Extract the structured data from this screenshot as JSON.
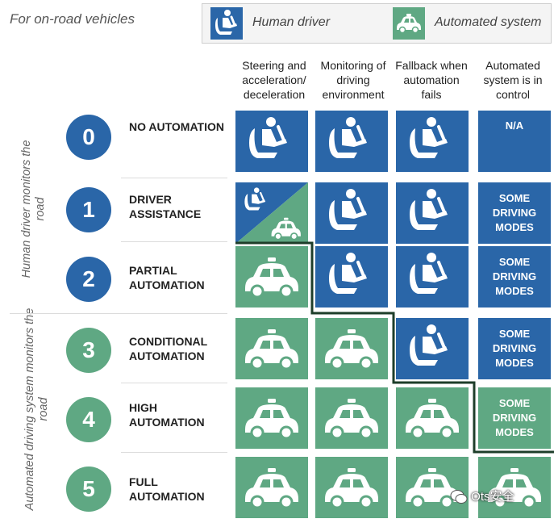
{
  "header": {
    "title": "For on-road vehicles"
  },
  "legend": {
    "human": "Human driver",
    "automated": "Automated system",
    "human_icon": "human-driver-icon",
    "automated_icon": "self-driving-car-icon"
  },
  "columns": [
    "Steering and acceleration/ deceleration",
    "Monitoring of driving environment",
    "Fallback when automation fails",
    "Automated system is in control"
  ],
  "groups": {
    "human": "Human driver monitors the road",
    "automated": "Automated driving system monitors the road"
  },
  "colors": {
    "human": "#2a66a8",
    "automated": "#5fa883",
    "staircase": "#1e3e2a"
  },
  "levels": [
    {
      "number": "0",
      "name": "No automation",
      "cells": [
        "human",
        "human",
        "human",
        "text"
      ],
      "control_text": "N/A"
    },
    {
      "number": "1",
      "name": "Driver assistance",
      "cells": [
        "split",
        "human",
        "human",
        "text"
      ],
      "control_text": "Some driving modes"
    },
    {
      "number": "2",
      "name": "Partial automation",
      "cells": [
        "car",
        "human",
        "human",
        "text"
      ],
      "control_text": "Some driving modes"
    },
    {
      "number": "3",
      "name": "Conditional automation",
      "cells": [
        "car",
        "car",
        "human",
        "text"
      ],
      "control_text": "Some driving modes"
    },
    {
      "number": "4",
      "name": "High automation",
      "cells": [
        "car",
        "car",
        "car",
        "text"
      ],
      "control_text": "Some driving modes"
    },
    {
      "number": "5",
      "name": "Full automation",
      "cells": [
        "car",
        "car",
        "car",
        "car"
      ],
      "control_text": ""
    }
  ],
  "watermark": {
    "text": "Ots安全"
  }
}
